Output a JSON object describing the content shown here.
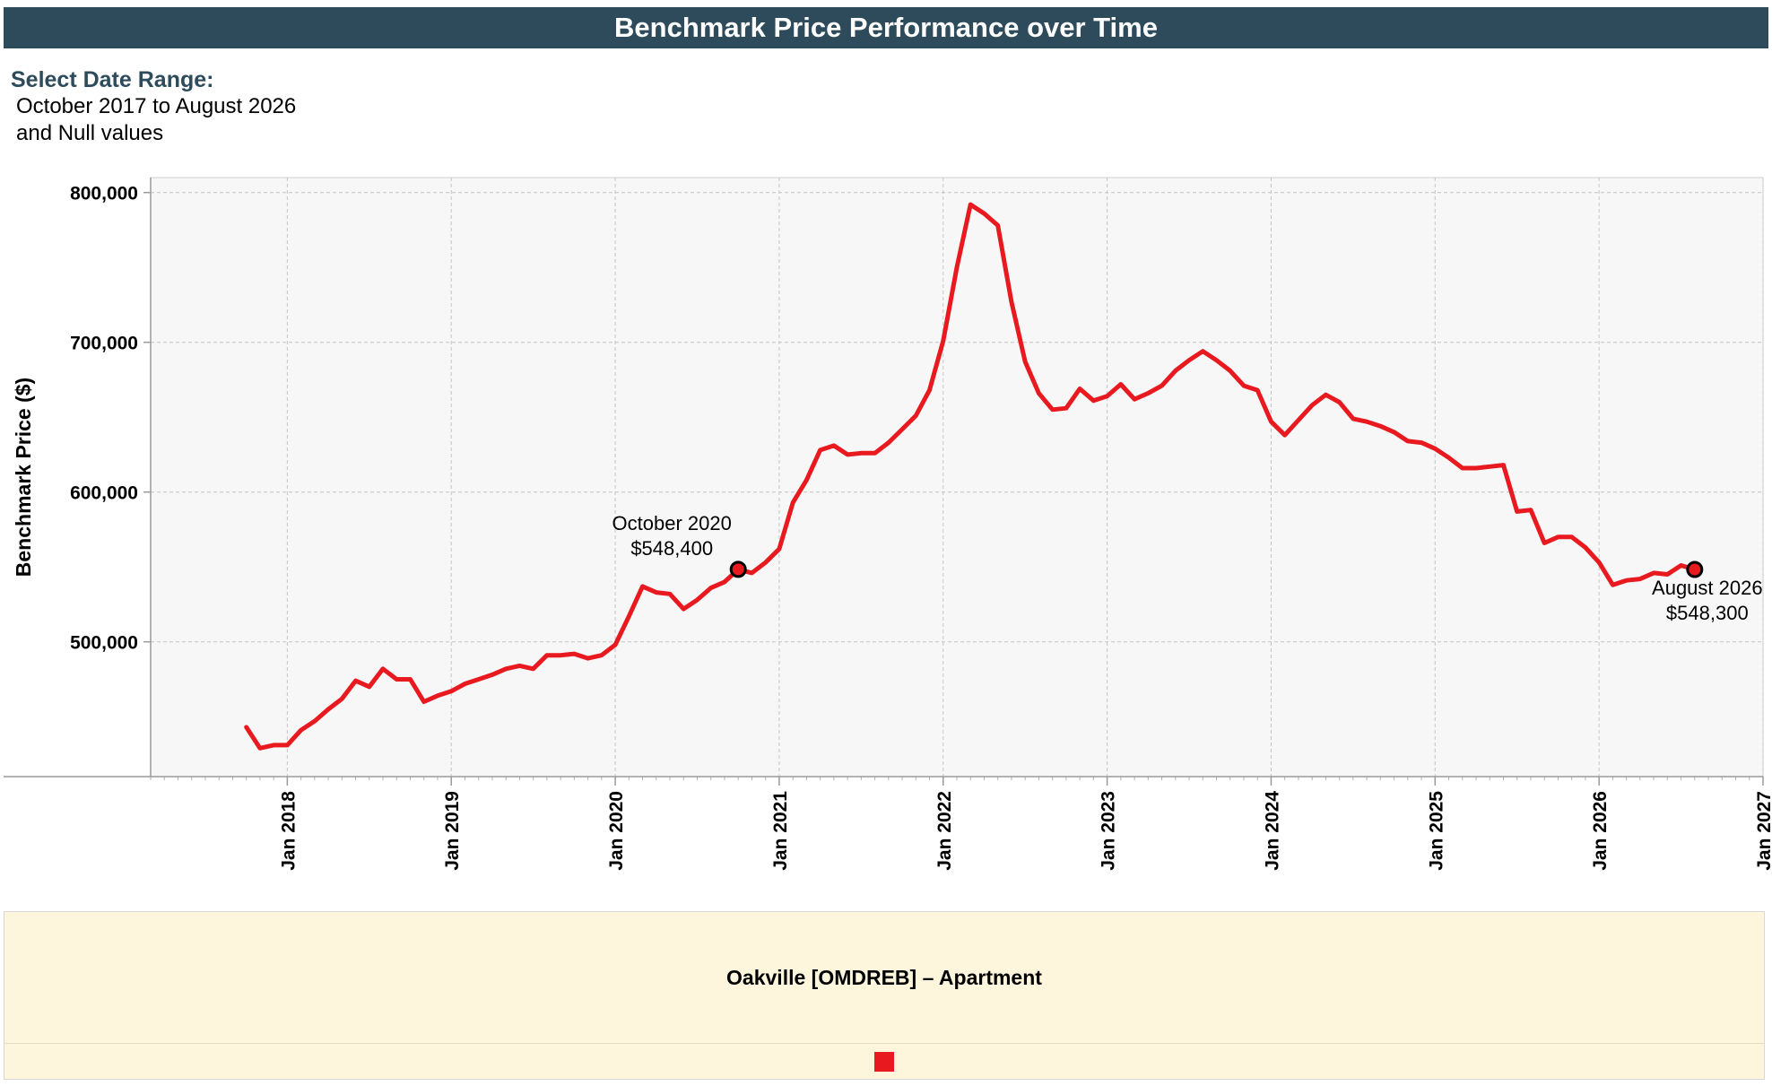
{
  "header": {
    "title": "Benchmark Price Performance over Time"
  },
  "filter": {
    "label": "Select Date Range:",
    "line1": "October 2017 to August 2026",
    "line2": "and Null values"
  },
  "legend": {
    "title": "Oakville [OMDREB] – Apartment",
    "color": "#e8191f"
  },
  "chart_data": {
    "type": "line",
    "title": "",
    "xlabel": "",
    "ylabel": "Benchmark Price ($)",
    "grid": true,
    "x_range": [
      "2017-03",
      "2027-01"
    ],
    "ylim": [
      410000,
      810000
    ],
    "y_ticks": [
      500000,
      600000,
      700000,
      800000
    ],
    "y_tick_labels": [
      "500,000",
      "600,000",
      "700,000",
      "800,000"
    ],
    "x_ticks": [
      "2018-01",
      "2019-01",
      "2020-01",
      "2021-01",
      "2022-01",
      "2023-01",
      "2024-01",
      "2025-01",
      "2026-01",
      "2027-01"
    ],
    "x_tick_labels": [
      "Jan 2018",
      "Jan 2019",
      "Jan 2020",
      "Jan 2021",
      "Jan 2022",
      "Jan 2023",
      "Jan 2024",
      "Jan 2025",
      "Jan 2026",
      "Jan 2027"
    ],
    "series": [
      {
        "name": "Oakville [OMDREB] – Apartment",
        "color": "#e8191f",
        "x": [
          "2017-10",
          "2017-11",
          "2017-12",
          "2018-01",
          "2018-02",
          "2018-03",
          "2018-04",
          "2018-05",
          "2018-06",
          "2018-07",
          "2018-08",
          "2018-09",
          "2018-10",
          "2018-11",
          "2018-12",
          "2019-01",
          "2019-02",
          "2019-03",
          "2019-04",
          "2019-05",
          "2019-06",
          "2019-07",
          "2019-08",
          "2019-09",
          "2019-10",
          "2019-11",
          "2019-12",
          "2020-01",
          "2020-02",
          "2020-03",
          "2020-04",
          "2020-05",
          "2020-06",
          "2020-07",
          "2020-08",
          "2020-09",
          "2020-10",
          "2020-11",
          "2020-12",
          "2021-01",
          "2021-02",
          "2021-03",
          "2021-04",
          "2021-05",
          "2021-06",
          "2021-07",
          "2021-08",
          "2021-09",
          "2021-10",
          "2021-11",
          "2021-12",
          "2022-01",
          "2022-02",
          "2022-03",
          "2022-04",
          "2022-05",
          "2022-06",
          "2022-07",
          "2022-08",
          "2022-09",
          "2022-10",
          "2022-11",
          "2022-12",
          "2023-01",
          "2023-02",
          "2023-03",
          "2023-04",
          "2023-05",
          "2023-06",
          "2023-07",
          "2023-08",
          "2023-09",
          "2023-10",
          "2023-11",
          "2023-12",
          "2024-01",
          "2024-02",
          "2024-03",
          "2024-04",
          "2024-05",
          "2024-06",
          "2024-07",
          "2024-08",
          "2024-09",
          "2024-10",
          "2024-11",
          "2024-12",
          "2025-01",
          "2025-02",
          "2025-03",
          "2025-04",
          "2025-05",
          "2025-06",
          "2025-07",
          "2025-08",
          "2025-09",
          "2025-10",
          "2025-11",
          "2025-12",
          "2026-01",
          "2026-02",
          "2026-03",
          "2026-04",
          "2026-05",
          "2026-06",
          "2026-07",
          "2026-08"
        ],
        "values": [
          443000,
          429000,
          431000,
          431000,
          441000,
          447000,
          455000,
          462000,
          474000,
          470000,
          482000,
          475000,
          475000,
          460000,
          464000,
          467000,
          472000,
          475000,
          478000,
          482000,
          484000,
          482000,
          491000,
          491000,
          492000,
          489000,
          491000,
          498000,
          517000,
          537000,
          533000,
          532000,
          522000,
          528000,
          536000,
          540000,
          548400,
          546000,
          553000,
          562000,
          593000,
          608000,
          628000,
          631000,
          625000,
          626000,
          626000,
          633000,
          642000,
          651000,
          668000,
          701000,
          750000,
          792000,
          786000,
          778000,
          727000,
          687000,
          666000,
          655000,
          656000,
          669000,
          661000,
          664000,
          672000,
          662000,
          666000,
          671000,
          681000,
          688000,
          694000,
          688000,
          681000,
          671000,
          668000,
          647000,
          638000,
          648000,
          658000,
          665000,
          660000,
          649000,
          647000,
          644000,
          640000,
          634000,
          633000,
          629000,
          623000,
          616000,
          616000,
          617000,
          618000,
          587000,
          588000,
          566000,
          570000,
          570000,
          563000,
          553000,
          538000,
          541000,
          542000,
          546000,
          545000,
          551000,
          548300
        ]
      }
    ],
    "annotations": [
      {
        "x": "2020-10",
        "y": 548400,
        "label_date": "October 2020",
        "label_value": "$548,400",
        "position": "above-left"
      },
      {
        "x": "2026-08",
        "y": 548300,
        "label_date": "August 2026",
        "label_value": "$548,300",
        "position": "below"
      }
    ]
  }
}
